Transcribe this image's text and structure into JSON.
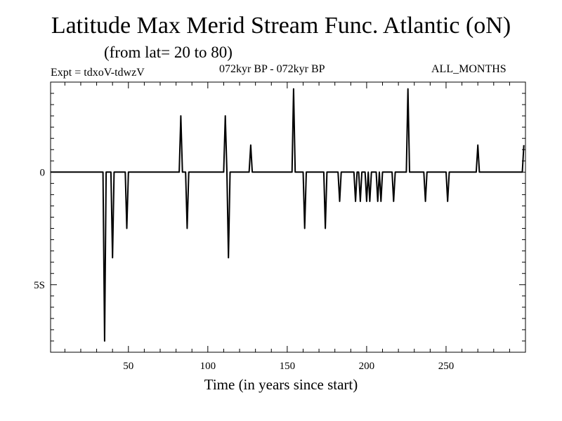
{
  "title": "Latitude Max Merid Stream Func. Atlantic (oN)",
  "subtitle": "(from lat= 20 to 80)",
  "header": {
    "left": "Expt = tdxoV-tdwzV",
    "middle": "072kyr BP - 072kyr BP",
    "right": "ALL_MONTHS"
  },
  "chart_data": {
    "type": "line",
    "title": "Latitude Max Merid Stream Func. Atlantic (oN)",
    "xlabel": "Time (in years since start)",
    "ylabel": "",
    "xlim": [
      1,
      300
    ],
    "ylim": [
      -8,
      4
    ],
    "x_ticks": [
      50,
      100,
      150,
      200,
      250
    ],
    "x_tick_labels": [
      "50",
      "100",
      "150",
      "200",
      "250"
    ],
    "y_ticks": [
      0,
      -5
    ],
    "y_tick_labels": [
      "0",
      "5S"
    ],
    "grid": false,
    "series": [
      {
        "color": "#000000",
        "x": [
          1,
          34,
          35,
          36,
          39,
          40,
          41,
          48,
          49,
          50,
          82,
          83,
          84,
          86,
          87,
          88,
          110,
          111,
          112,
          113,
          114,
          126,
          127,
          128,
          153,
          154,
          155,
          160,
          161,
          162,
          173,
          174,
          175,
          182,
          183,
          184,
          192,
          193,
          194,
          195,
          196,
          197,
          199,
          200,
          201,
          202,
          203,
          206,
          207,
          208,
          209,
          210,
          211,
          216,
          217,
          218,
          225,
          226,
          227,
          236,
          237,
          238,
          250,
          251,
          252,
          269,
          270,
          271,
          297,
          298,
          299
        ],
        "y": [
          0,
          0,
          -7.5,
          0,
          0,
          -3.8,
          0,
          0,
          -2.5,
          0,
          0,
          2.5,
          0,
          0,
          -2.5,
          0,
          0,
          2.5,
          0,
          -3.8,
          0,
          0,
          1.2,
          0,
          0,
          3.7,
          0,
          0,
          -2.5,
          0,
          0,
          -2.5,
          0,
          0,
          -1.3,
          0,
          0,
          -1.3,
          0,
          0,
          -1.3,
          0,
          0,
          -1.3,
          0,
          -1.3,
          0,
          0,
          -1.3,
          0,
          -1.3,
          0,
          0,
          0,
          -1.3,
          0,
          0,
          3.7,
          0,
          0,
          -1.3,
          0,
          0,
          -1.3,
          0,
          0,
          1.2,
          0,
          0,
          0,
          1.2
        ]
      }
    ]
  }
}
